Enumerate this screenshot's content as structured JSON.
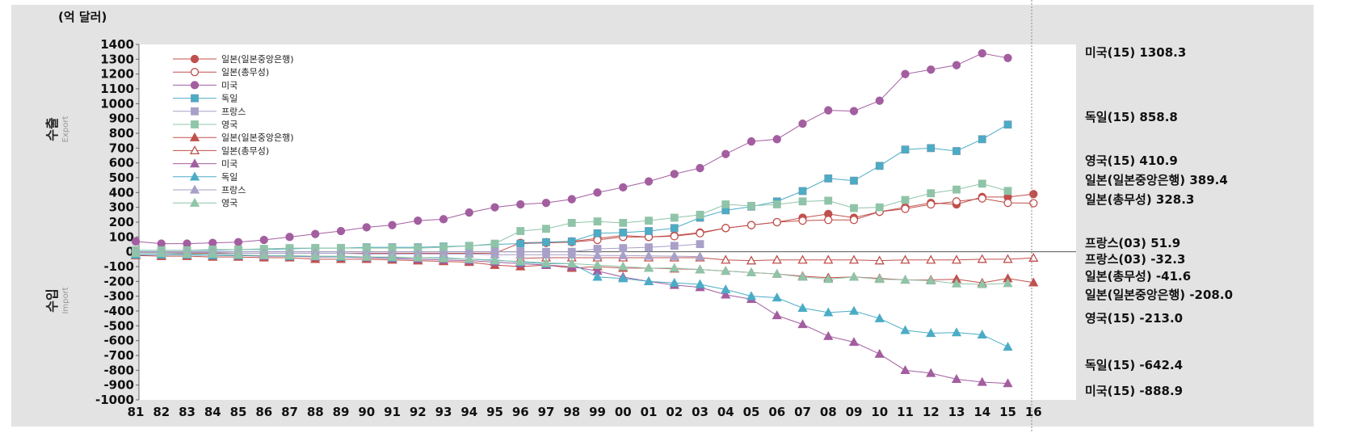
{
  "chart_data": {
    "type": "line",
    "unit_label": "(억 달러)",
    "ylabel_top_ko": "수출",
    "ylabel_top_en": "Export",
    "ylabel_bottom_ko": "수입",
    "ylabel_bottom_en": "Import",
    "ylim": [
      -1000,
      1400
    ],
    "yticks": [
      1400,
      1300,
      1200,
      1100,
      1000,
      900,
      800,
      700,
      600,
      500,
      400,
      300,
      200,
      100,
      0,
      -100,
      -200,
      -300,
      -400,
      -500,
      -600,
      -700,
      -800,
      -900,
      -1000
    ],
    "x": [
      1981,
      1982,
      1983,
      1984,
      1985,
      1986,
      1987,
      1988,
      1989,
      1990,
      1991,
      1992,
      1993,
      1994,
      1995,
      1996,
      1997,
      1998,
      1999,
      2000,
      2001,
      2002,
      2003,
      2004,
      2005,
      2006,
      2007,
      2008,
      2009,
      2010,
      2011,
      2012,
      2013,
      2014,
      2015,
      2016
    ],
    "x_tick_labels": [
      "81",
      "82",
      "83",
      "84",
      "85",
      "86",
      "87",
      "88",
      "89",
      "90",
      "91",
      "92",
      "93",
      "94",
      "95",
      "96",
      "97",
      "98",
      "99",
      "00",
      "01",
      "02",
      "03",
      "04",
      "05",
      "06",
      "07",
      "08",
      "09",
      "10",
      "11",
      "12",
      "13",
      "14",
      "15",
      "16"
    ],
    "grid": false,
    "legend_position": "top-left",
    "series": [
      {
        "name": "일본(일본중앙은행)",
        "kind": "export",
        "color": "#c0504d",
        "marker": "circle-filled",
        "x": [
          1981,
          1982,
          1983,
          1984,
          1985,
          1986,
          1987,
          1988,
          1989,
          1990,
          1991,
          1992,
          1993,
          1994,
          1995,
          1996,
          1997,
          1998,
          1999,
          2000,
          2001,
          2002,
          2003,
          2004,
          2005,
          2006,
          2007,
          2008,
          2009,
          2010,
          2011,
          2012,
          2013,
          2014,
          2015,
          2016
        ],
        "values": [
          -10,
          -10,
          -10,
          -10,
          -10,
          -10,
          -10,
          -10,
          -10,
          -10,
          -10,
          -10,
          -10,
          -10,
          -10,
          60,
          65,
          70,
          90,
          110,
          100,
          110,
          130,
          160,
          180,
          200,
          230,
          255,
          230,
          270,
          300,
          330,
          320,
          370,
          370,
          389.4
        ]
      },
      {
        "name": "일본(총무성)",
        "kind": "export",
        "color": "#c0504d",
        "marker": "circle-open",
        "x": [
          1996,
          1997,
          1998,
          1999,
          2000,
          2001,
          2002,
          2003,
          2004,
          2005,
          2006,
          2007,
          2008,
          2009,
          2010,
          2011,
          2012,
          2013,
          2014,
          2015,
          2016
        ],
        "values": [
          55,
          60,
          65,
          80,
          100,
          100,
          105,
          125,
          160,
          180,
          200,
          210,
          215,
          215,
          270,
          290,
          320,
          340,
          360,
          330,
          328.3
        ]
      },
      {
        "name": "미국",
        "kind": "export",
        "color": "#a35ea0",
        "marker": "circle-filled",
        "x": [
          1981,
          1982,
          1983,
          1984,
          1985,
          1986,
          1987,
          1988,
          1989,
          1990,
          1991,
          1992,
          1993,
          1994,
          1995,
          1996,
          1997,
          1998,
          1999,
          2000,
          2001,
          2002,
          2003,
          2004,
          2005,
          2006,
          2007,
          2008,
          2009,
          2010,
          2011,
          2012,
          2013,
          2014,
          2015
        ],
        "values": [
          70,
          55,
          55,
          60,
          65,
          80,
          100,
          120,
          140,
          165,
          180,
          210,
          220,
          265,
          300,
          320,
          330,
          355,
          400,
          435,
          475,
          525,
          565,
          660,
          745,
          760,
          865,
          955,
          950,
          1020,
          1200,
          1230,
          1260,
          1340,
          1308.3
        ]
      },
      {
        "name": "독일",
        "kind": "export",
        "color": "#4bacc6",
        "marker": "square-filled",
        "x": [
          1981,
          1982,
          1983,
          1984,
          1985,
          1986,
          1987,
          1988,
          1989,
          1990,
          1991,
          1992,
          1993,
          1994,
          1995,
          1996,
          1997,
          1998,
          1999,
          2000,
          2001,
          2002,
          2003,
          2004,
          2005,
          2006,
          2007,
          2008,
          2009,
          2010,
          2011,
          2012,
          2013,
          2014,
          2015
        ],
        "values": [
          10,
          10,
          10,
          10,
          15,
          15,
          20,
          25,
          25,
          30,
          30,
          30,
          35,
          40,
          50,
          55,
          65,
          70,
          125,
          130,
          140,
          160,
          230,
          280,
          305,
          340,
          410,
          495,
          480,
          580,
          690,
          700,
          680,
          760,
          858.8
        ]
      },
      {
        "name": "프랑스",
        "kind": "export",
        "color": "#a9a0c8",
        "marker": "square-filled",
        "x": [
          1981,
          1982,
          1983,
          1984,
          1985,
          1986,
          1987,
          1988,
          1989,
          1990,
          1991,
          1992,
          1993,
          1994,
          1995,
          1996,
          1997,
          1998,
          1999,
          2000,
          2001,
          2002,
          2003
        ],
        "values": [
          0,
          0,
          0,
          0,
          0,
          0,
          0,
          0,
          0,
          0,
          0,
          0,
          0,
          0,
          0,
          0,
          0,
          0,
          20,
          25,
          30,
          40,
          51.9
        ]
      },
      {
        "name": "영국",
        "kind": "export",
        "color": "#90c4a8",
        "marker": "square-filled",
        "x": [
          1981,
          1982,
          1983,
          1984,
          1985,
          1986,
          1987,
          1988,
          1989,
          1990,
          1991,
          1992,
          1993,
          1994,
          1995,
          1996,
          1997,
          1998,
          1999,
          2000,
          2001,
          2002,
          2003,
          2004,
          2005,
          2006,
          2007,
          2008,
          2009,
          2010,
          2011,
          2012,
          2013,
          2014,
          2015
        ],
        "values": [
          10,
          10,
          10,
          15,
          15,
          20,
          25,
          25,
          25,
          25,
          25,
          25,
          30,
          40,
          55,
          140,
          155,
          195,
          205,
          195,
          210,
          230,
          250,
          320,
          310,
          320,
          340,
          345,
          295,
          300,
          350,
          395,
          420,
          460,
          410.9
        ]
      },
      {
        "name": "일본(일본중앙은행)",
        "kind": "import",
        "color": "#c0504d",
        "marker": "triangle-filled",
        "x": [
          1981,
          1982,
          1983,
          1984,
          1985,
          1986,
          1987,
          1988,
          1989,
          1990,
          1991,
          1992,
          1993,
          1994,
          1995,
          1996,
          1997,
          1998,
          1999,
          2000,
          2001,
          2002,
          2003,
          2004,
          2005,
          2006,
          2007,
          2008,
          2009,
          2010,
          2011,
          2012,
          2013,
          2014,
          2015,
          2016
        ],
        "values": [
          -25,
          -30,
          -30,
          -35,
          -35,
          -40,
          -40,
          -50,
          -50,
          -50,
          -55,
          -60,
          -65,
          -70,
          -90,
          -100,
          -90,
          -110,
          -100,
          -110,
          -110,
          -115,
          -120,
          -130,
          -140,
          -150,
          -165,
          -175,
          -170,
          -180,
          -190,
          -190,
          -185,
          -210,
          -180,
          -208.0
        ]
      },
      {
        "name": "일본(총무성)",
        "kind": "import",
        "color": "#c0504d",
        "marker": "triangle-open",
        "x": [
          1996,
          1997,
          1998,
          1999,
          2000,
          2001,
          2002,
          2003,
          2004,
          2005,
          2006,
          2007,
          2008,
          2009,
          2010,
          2011,
          2012,
          2013,
          2014,
          2015,
          2016
        ],
        "values": [
          -45,
          -40,
          -40,
          -40,
          -40,
          -40,
          -40,
          -40,
          -55,
          -60,
          -55,
          -55,
          -55,
          -55,
          -60,
          -55,
          -55,
          -55,
          -50,
          -50,
          -41.6
        ]
      },
      {
        "name": "미국",
        "kind": "import",
        "color": "#a35ea0",
        "marker": "triangle-filled",
        "x": [
          1981,
          1982,
          1983,
          1984,
          1985,
          1986,
          1987,
          1988,
          1989,
          1990,
          1991,
          1992,
          1993,
          1994,
          1995,
          1996,
          1997,
          1998,
          1999,
          2000,
          2001,
          2002,
          2003,
          2004,
          2005,
          2006,
          2007,
          2008,
          2009,
          2010,
          2011,
          2012,
          2013,
          2014,
          2015
        ],
        "values": [
          -20,
          -20,
          -20,
          -25,
          -25,
          -30,
          -30,
          -35,
          -35,
          -40,
          -45,
          -50,
          -55,
          -60,
          -70,
          -80,
          -90,
          -100,
          -130,
          -170,
          -200,
          -225,
          -240,
          -290,
          -320,
          -430,
          -490,
          -570,
          -610,
          -690,
          -800,
          -820,
          -860,
          -880,
          -888.9
        ]
      },
      {
        "name": "독일",
        "kind": "import",
        "color": "#4bacc6",
        "marker": "triangle-filled",
        "x": [
          1981,
          1982,
          1983,
          1984,
          1985,
          1986,
          1987,
          1988,
          1989,
          1990,
          1991,
          1992,
          1993,
          1994,
          1995,
          1996,
          1997,
          1998,
          1999,
          2000,
          2001,
          2002,
          2003,
          2004,
          2005,
          2006,
          2007,
          2008,
          2009,
          2010,
          2011,
          2012,
          2013,
          2014,
          2015
        ],
        "values": [
          -20,
          -20,
          -20,
          -25,
          -25,
          -25,
          -30,
          -30,
          -35,
          -35,
          -40,
          -40,
          -40,
          -50,
          -55,
          -70,
          -80,
          -80,
          -170,
          -180,
          -200,
          -210,
          -220,
          -255,
          -300,
          -310,
          -380,
          -410,
          -400,
          -450,
          -530,
          -550,
          -545,
          -560,
          -642.4
        ]
      },
      {
        "name": "프랑스",
        "kind": "import",
        "color": "#a9a0c8",
        "marker": "triangle-filled",
        "x": [
          1981,
          1982,
          1983,
          1984,
          1985,
          1986,
          1987,
          1988,
          1989,
          1990,
          1991,
          1992,
          1993,
          1994,
          1995,
          1996,
          1997,
          1998,
          1999,
          2000,
          2001,
          2002,
          2003
        ],
        "values": [
          -5,
          -5,
          -5,
          -5,
          -10,
          -10,
          -10,
          -10,
          -10,
          -15,
          -15,
          -15,
          -15,
          -15,
          -20,
          -20,
          -20,
          -20,
          -25,
          -25,
          -28,
          -30,
          -32.3
        ]
      },
      {
        "name": "영국",
        "kind": "import",
        "color": "#90c4a8",
        "marker": "triangle-filled",
        "x": [
          1981,
          1982,
          1983,
          1984,
          1985,
          1986,
          1987,
          1988,
          1989,
          1990,
          1991,
          1992,
          1993,
          1994,
          1995,
          1996,
          1997,
          1998,
          1999,
          2000,
          2001,
          2002,
          2003,
          2004,
          2005,
          2006,
          2007,
          2008,
          2009,
          2010,
          2011,
          2012,
          2013,
          2014,
          2015
        ],
        "values": [
          -10,
          -10,
          -15,
          -15,
          -20,
          -25,
          -25,
          -30,
          -30,
          -35,
          -35,
          -40,
          -45,
          -50,
          -60,
          -65,
          -75,
          -80,
          -90,
          -100,
          -110,
          -110,
          -120,
          -130,
          -140,
          -150,
          -170,
          -185,
          -170,
          -185,
          -190,
          -195,
          -215,
          -220,
          -213.0
        ]
      }
    ],
    "end_labels": [
      {
        "text": "미국(15) 1308.3",
        "value": 1308.3
      },
      {
        "text": "독일(15) 858.8",
        "value": 858.8
      },
      {
        "text": "영국(15) 410.9",
        "value": 410.9
      },
      {
        "text": "일본(일본중앙은행) 389.4",
        "value": 389.4
      },
      {
        "text": "일본(총무성) 328.3",
        "value": 328.3
      },
      {
        "text": "프랑스(03) 51.9",
        "value": 51.9
      },
      {
        "text": "프랑스(03) -32.3",
        "value": -32.3
      },
      {
        "text": "일본(총무성) -41.6",
        "value": -41.6
      },
      {
        "text": "일본(일본중앙은행) -208.0",
        "value": -208.0
      },
      {
        "text": "영국(15) -213.0",
        "value": -213.0
      },
      {
        "text": "독일(15) -642.4",
        "value": -642.4
      },
      {
        "text": "미국(15) -888.9",
        "value": -888.9
      }
    ]
  }
}
